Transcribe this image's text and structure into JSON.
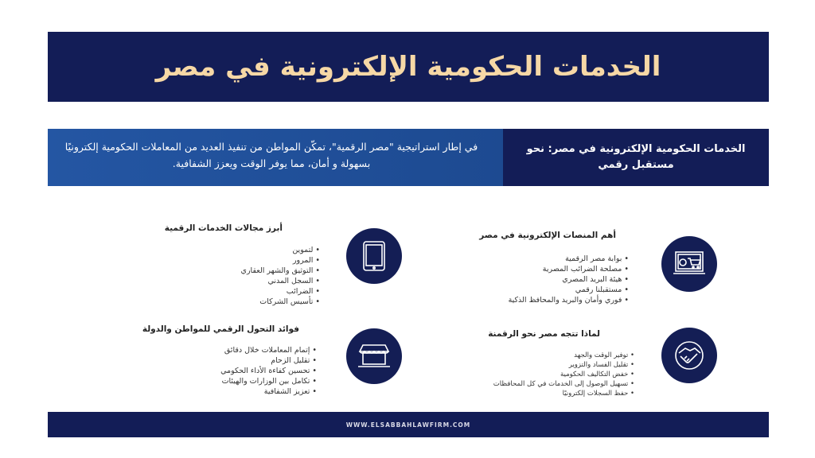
{
  "title": "الخدمات الحكومية الإلكترونية في مصر",
  "intro": {
    "heading": "الخدمات الحكومية الإلكترونية في مصر: نحو مستقبل رقمي",
    "text": "في إطار استراتيجية \"مصر الرقمية\"، تمكّن المواطن من تنفيذ العديد من المعاملات الحكومية إلكترونيًا بسهولة و   أمان، مما يوفر الوقت ويعزز الشفافية."
  },
  "sections": {
    "platforms": {
      "icon": "laptop-shopping-cart-icon",
      "title": "أهم المنصات الإلكترونية في مصر",
      "items": [
        "بوابة مصر الرقمية",
        "مصلحة الضرائب المصرية",
        "هيئة البريد المصري",
        "مستقبلنا رقمي",
        "فوري وأمان والبريد والمحافظ الذكية"
      ]
    },
    "areas": {
      "icon": "tablet-icon",
      "title": "أبرز مجالات الخدمات الرقمية",
      "items": [
        "لتموين",
        "المرور",
        "التوثيق والشهر العقاري",
        "السجل المدني",
        "الضرائب",
        "تأسيس الشركات"
      ]
    },
    "why": {
      "icon": "handshake-icon",
      "title": "لماذا تتجه مصر نحو الرقمنة",
      "items": [
        "توفير الوقت والجهد",
        "تقليل الفساد والتزوير",
        "خفض التكاليف الحكومية",
        "تسهيل الوصول إلى الخدمات في كل المحافظات",
        "حفظ السجلات إلكترونيًا"
      ]
    },
    "benefits": {
      "icon": "online-store-icon",
      "title": "فوائد التحول الرقمي للمواطن والدولة",
      "items": [
        "إتمام المعاملات خلال دقائق",
        "تقليل الزحام",
        "تحسين كفاءة الأداء الحكومي",
        "تكامل بين الوزارات والهيئات",
        "تعزيز الشفافية"
      ]
    }
  },
  "footer": "WWW.ELSABBAHLAWFIRM.COM",
  "colors": {
    "navy": "#131d57",
    "blue": "#2456a3",
    "title": "#f6d8a6"
  }
}
